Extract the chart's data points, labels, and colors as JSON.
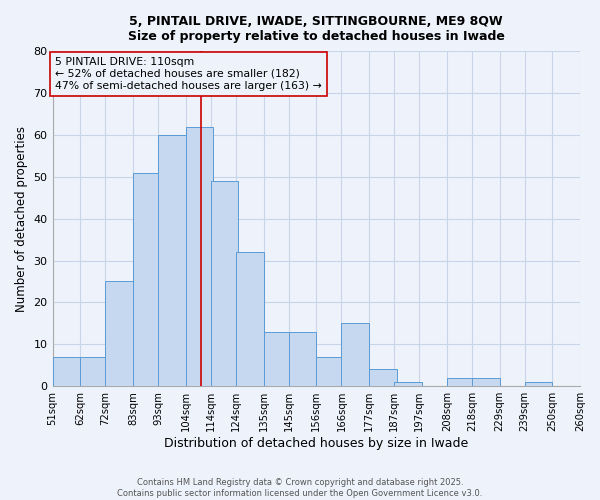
{
  "title_line1": "5, PINTAIL DRIVE, IWADE, SITTINGBOURNE, ME9 8QW",
  "title_line2": "Size of property relative to detached houses in Iwade",
  "xlabel": "Distribution of detached houses by size in Iwade",
  "ylabel": "Number of detached properties",
  "bar_left_edges": [
    51,
    62,
    72,
    83,
    93,
    104,
    114,
    124,
    135,
    145,
    156,
    166,
    177,
    187,
    197,
    208,
    218,
    229,
    239,
    250
  ],
  "bar_heights": [
    7,
    7,
    25,
    51,
    60,
    62,
    49,
    32,
    13,
    13,
    7,
    15,
    4,
    1,
    0,
    2,
    2,
    0,
    1,
    0
  ],
  "bin_width": 11,
  "tick_labels": [
    "51sqm",
    "62sqm",
    "72sqm",
    "83sqm",
    "93sqm",
    "104sqm",
    "114sqm",
    "124sqm",
    "135sqm",
    "145sqm",
    "156sqm",
    "166sqm",
    "177sqm",
    "187sqm",
    "197sqm",
    "208sqm",
    "218sqm",
    "229sqm",
    "239sqm",
    "250sqm",
    "260sqm"
  ],
  "bar_color": "#c5d8f0",
  "bar_edge_color": "#5b9bd5",
  "reference_line_x": 110,
  "reference_line_color": "#cc0000",
  "annotation_line1": "5 PINTAIL DRIVE: 110sqm",
  "annotation_line2": "← 52% of detached houses are smaller (182)",
  "annotation_line3": "47% of semi-detached houses are larger (163) →",
  "ylim": [
    0,
    80
  ],
  "yticks": [
    0,
    10,
    20,
    30,
    40,
    50,
    60,
    70,
    80
  ],
  "xlim_left": 51,
  "xlim_right": 261,
  "background_color": "#eef2fb",
  "grid_color": "#c8d4e8",
  "footer_line1": "Contains HM Land Registry data © Crown copyright and database right 2025.",
  "footer_line2": "Contains public sector information licensed under the Open Government Licence v3.0."
}
